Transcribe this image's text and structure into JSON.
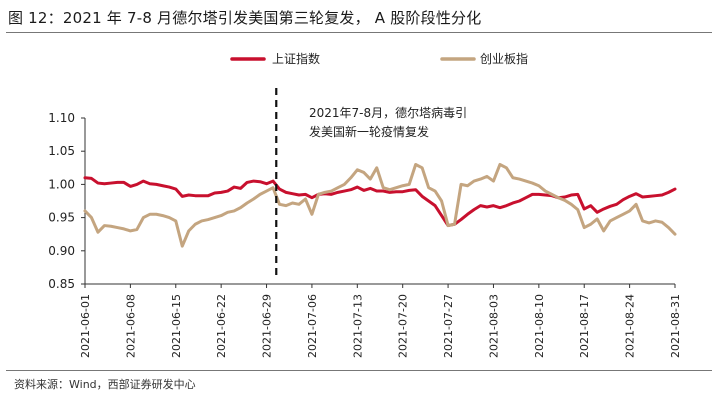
{
  "header": {
    "title": "图 12：2021 年 7-8 月德尔塔引发美国第三轮复发， A 股阶段性分化"
  },
  "footer": {
    "source": "资料来源：Wind，西部证券研发中心"
  },
  "chart_data": {
    "type": "line",
    "title": "图 12：2021 年 7-8 月德尔塔引发美国第三轮复发， A 股阶段性分化",
    "xlabel": "",
    "ylabel": "",
    "ylim": [
      0.85,
      1.1
    ],
    "yticks": [
      "1.10",
      "1.05",
      "1.00",
      "0.95",
      "0.90",
      "0.85"
    ],
    "ytick_values": [
      1.1,
      1.05,
      1.0,
      0.95,
      0.9,
      0.85
    ],
    "xlim": [
      0,
      91
    ],
    "xticks": [
      {
        "label": "2021-06-01",
        "day": 0
      },
      {
        "label": "2021-06-08",
        "day": 7
      },
      {
        "label": "2021-06-15",
        "day": 14
      },
      {
        "label": "2021-06-22",
        "day": 21
      },
      {
        "label": "2021-06-29",
        "day": 28
      },
      {
        "label": "2021-07-06",
        "day": 35
      },
      {
        "label": "2021-07-13",
        "day": 42
      },
      {
        "label": "2021-07-20",
        "day": 49
      },
      {
        "label": "2021-07-27",
        "day": 56
      },
      {
        "label": "2021-08-03",
        "day": 63
      },
      {
        "label": "2021-08-10",
        "day": 70
      },
      {
        "label": "2021-08-17",
        "day": 77
      },
      {
        "label": "2021-08-24",
        "day": 84
      },
      {
        "label": "2021-08-31",
        "day": 91
      }
    ],
    "legend_position": "top",
    "annotation": {
      "lines": [
        "2021年7-8月，德尔塔病毒引",
        "发美国新一轮疫情复发"
      ],
      "marker_day": 29.5
    },
    "series": [
      {
        "name": "上证指数",
        "color": "#C8102E",
        "x": [
          0,
          1,
          2,
          3,
          4,
          5,
          6,
          7,
          8,
          9,
          10,
          11,
          12,
          13,
          14,
          15,
          16,
          17,
          18,
          19,
          20,
          21,
          22,
          23,
          24,
          25,
          26,
          27,
          28,
          29,
          30,
          31,
          32,
          33,
          34,
          35,
          36,
          37,
          38,
          39,
          40,
          41,
          42,
          43,
          44,
          45,
          46,
          47,
          48,
          49,
          50,
          51,
          52,
          53,
          54,
          55,
          56,
          57,
          58,
          59,
          60,
          61,
          62,
          63,
          64,
          65,
          66,
          67,
          68,
          69,
          70,
          71,
          72,
          73,
          74,
          75,
          76,
          77,
          78,
          79,
          80,
          81,
          82,
          83,
          84,
          85,
          86,
          87,
          88,
          89,
          90,
          91
        ],
        "values": [
          1.01,
          1.009,
          1.002,
          1.001,
          1.002,
          1.003,
          1.003,
          0.997,
          1.0,
          1.005,
          1.001,
          1.0,
          0.998,
          0.996,
          0.993,
          0.982,
          0.984,
          0.983,
          0.983,
          0.983,
          0.987,
          0.988,
          0.99,
          0.996,
          0.994,
          1.003,
          1.005,
          1.004,
          1.001,
          1.005,
          0.993,
          0.988,
          0.986,
          0.984,
          0.985,
          0.98,
          0.985,
          0.986,
          0.985,
          0.988,
          0.99,
          0.992,
          0.996,
          0.991,
          0.994,
          0.99,
          0.99,
          0.988,
          0.989,
          0.989,
          0.991,
          0.992,
          0.982,
          0.975,
          0.968,
          0.953,
          0.938,
          0.94,
          0.947,
          0.955,
          0.962,
          0.968,
          0.966,
          0.968,
          0.965,
          0.968,
          0.972,
          0.975,
          0.98,
          0.985,
          0.985,
          0.984,
          0.983,
          0.98,
          0.981,
          0.984,
          0.985,
          0.963,
          0.968,
          0.958,
          0.963,
          0.967,
          0.97,
          0.977,
          0.982,
          0.986,
          0.981,
          0.982,
          0.983,
          0.984,
          0.988,
          0.993
        ]
      },
      {
        "name": "创业板指",
        "color": "#C4A580",
        "x": [
          0,
          1,
          2,
          3,
          4,
          5,
          6,
          7,
          8,
          9,
          10,
          11,
          12,
          13,
          14,
          15,
          16,
          17,
          18,
          19,
          20,
          21,
          22,
          23,
          24,
          25,
          26,
          27,
          28,
          29,
          30,
          31,
          32,
          33,
          34,
          35,
          36,
          37,
          38,
          39,
          40,
          41,
          42,
          43,
          44,
          45,
          46,
          47,
          48,
          49,
          50,
          51,
          52,
          53,
          54,
          55,
          56,
          57,
          58,
          59,
          60,
          61,
          62,
          63,
          64,
          65,
          66,
          67,
          68,
          69,
          70,
          71,
          72,
          73,
          74,
          75,
          76,
          77,
          78,
          79,
          80,
          81,
          82,
          83,
          84,
          85,
          86,
          87,
          88,
          89,
          90,
          91
        ],
        "values": [
          0.96,
          0.95,
          0.928,
          0.938,
          0.937,
          0.935,
          0.933,
          0.93,
          0.932,
          0.95,
          0.955,
          0.955,
          0.953,
          0.95,
          0.945,
          0.907,
          0.93,
          0.94,
          0.945,
          0.947,
          0.95,
          0.953,
          0.958,
          0.96,
          0.965,
          0.972,
          0.978,
          0.985,
          0.99,
          0.995,
          0.97,
          0.968,
          0.972,
          0.97,
          0.978,
          0.955,
          0.985,
          0.988,
          0.99,
          0.995,
          1.0,
          1.01,
          1.022,
          1.018,
          1.008,
          1.025,
          0.995,
          0.992,
          0.995,
          0.998,
          1.0,
          1.03,
          1.025,
          0.995,
          0.99,
          0.975,
          0.938,
          0.94,
          1.0,
          0.998,
          1.005,
          1.008,
          1.012,
          1.005,
          1.03,
          1.025,
          1.01,
          1.008,
          1.005,
          1.002,
          0.998,
          0.99,
          0.985,
          0.98,
          0.976,
          0.97,
          0.962,
          0.935,
          0.94,
          0.948,
          0.93,
          0.945,
          0.95,
          0.955,
          0.96,
          0.97,
          0.945,
          0.942,
          0.945,
          0.943,
          0.935,
          0.925
        ]
      }
    ]
  }
}
